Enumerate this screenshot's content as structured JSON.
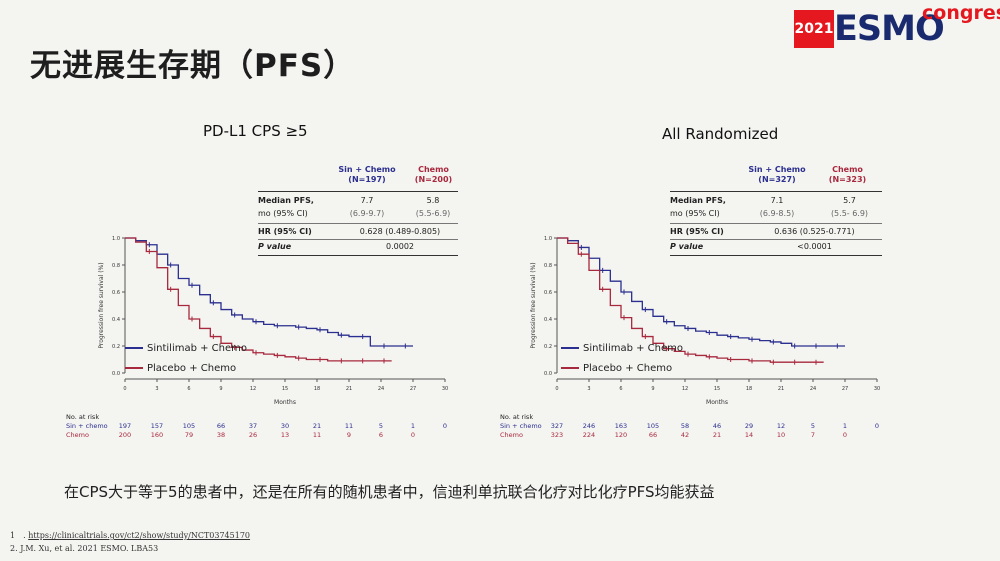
{
  "page": {
    "title": "无进展生存期（PFS）"
  },
  "logo": {
    "year": "2021",
    "brand": "ESMO",
    "suffix": "congress"
  },
  "caption": "在CPS大于等于5的患者中，还是在所有的随机患者中，信迪利单抗联合化疗对比化疗PFS均能获益",
  "references": [
    {
      "num": "1　.",
      "text": "https://clinicaltrials.gov/ct2/show/study/NCT03745170"
    },
    {
      "num": "2.",
      "text": "J.M. Xu, et al. 2021 ESMO. LBA53"
    }
  ],
  "colors": {
    "sin": "#2b2f8f",
    "chemo": "#a8293d",
    "neutral": "#888888"
  },
  "chart_data": [
    {
      "type": "line",
      "title": "PD-L1 CPS ≥5",
      "xlabel": "Months",
      "ylabel": "Progression free survival (%)",
      "xticks": [
        "0",
        "3",
        "6",
        "9",
        "12",
        "15",
        "18",
        "21",
        "24",
        "27",
        "30"
      ],
      "yticks": [
        "0.0",
        "0.2",
        "0.4",
        "0.6",
        "0.8",
        "1.0"
      ],
      "xlim": [
        0,
        30
      ],
      "ylim": [
        0,
        1
      ],
      "table": {
        "col1_head": [
          "Sin + Chemo",
          "(N=197)"
        ],
        "col2_head": [
          "Chemo",
          "(N=200)"
        ],
        "row1_label": [
          "Median PFS,",
          "mo (95% CI)"
        ],
        "row1_c1": [
          "7.7",
          "(6.9-9.7)"
        ],
        "row1_c2": [
          "5.8",
          "(5.5-6.9)"
        ],
        "row2_label": "HR (95% CI)",
        "row2_val": "0.628 (0.489-0.805)",
        "row3_label": "P value",
        "row3_val": "0.0002"
      },
      "series": [
        {
          "name": "Sintilimab + Chemo",
          "color": "#2b2f8f",
          "x": [
            0,
            1,
            2,
            3,
            4,
            5,
            6,
            7,
            8,
            9,
            10,
            11,
            12,
            13,
            14,
            15,
            16,
            17,
            18,
            19,
            20,
            21,
            22,
            23,
            24,
            25,
            26,
            27
          ],
          "y": [
            1.0,
            0.98,
            0.95,
            0.88,
            0.8,
            0.7,
            0.65,
            0.58,
            0.52,
            0.47,
            0.43,
            0.4,
            0.38,
            0.36,
            0.35,
            0.35,
            0.34,
            0.33,
            0.32,
            0.3,
            0.28,
            0.27,
            0.27,
            0.2,
            0.2,
            0.2,
            0.2,
            0.2
          ]
        },
        {
          "name": "Placebo + Chemo",
          "color": "#a8293d",
          "x": [
            0,
            1,
            2,
            3,
            4,
            5,
            6,
            7,
            8,
            9,
            10,
            11,
            12,
            13,
            14,
            15,
            16,
            17,
            18,
            19,
            20,
            21,
            22,
            23,
            24,
            25
          ],
          "y": [
            1.0,
            0.97,
            0.9,
            0.78,
            0.62,
            0.5,
            0.4,
            0.33,
            0.27,
            0.22,
            0.19,
            0.17,
            0.15,
            0.14,
            0.13,
            0.12,
            0.11,
            0.1,
            0.1,
            0.09,
            0.09,
            0.09,
            0.09,
            0.09,
            0.09,
            0.09
          ]
        }
      ],
      "at_risk": {
        "title": "No. at risk",
        "rows": [
          {
            "label": "Sin + chemo",
            "values": [
              "197",
              "157",
              "105",
              "66",
              "37",
              "30",
              "21",
              "11",
              "5",
              "1",
              "0"
            ]
          },
          {
            "label": "Chemo",
            "values": [
              "200",
              "160",
              "79",
              "38",
              "26",
              "13",
              "11",
              "9",
              "6",
              "0",
              ""
            ]
          }
        ]
      }
    },
    {
      "type": "line",
      "title": "All Randomized",
      "xlabel": "Months",
      "ylabel": "Progression free survival (%)",
      "xticks": [
        "0",
        "3",
        "6",
        "9",
        "12",
        "15",
        "18",
        "21",
        "24",
        "27",
        "30"
      ],
      "yticks": [
        "0.0",
        "0.2",
        "0.4",
        "0.6",
        "0.8",
        "1.0"
      ],
      "xlim": [
        0,
        30
      ],
      "ylim": [
        0,
        1
      ],
      "table": {
        "col1_head": [
          "Sin + Chemo",
          "(N=327)"
        ],
        "col2_head": [
          "Chemo",
          "(N=323)"
        ],
        "row1_label": [
          "Median PFS,",
          "mo (95% CI)"
        ],
        "row1_c1": [
          "7.1",
          "(6.9-8.5)"
        ],
        "row1_c2": [
          "5.7",
          "(5.5- 6.9)"
        ],
        "row2_label": "HR (95% CI)",
        "row2_val": "0.636 (0.525-0.771)",
        "row3_label": "P value",
        "row3_val": "<0.0001"
      },
      "series": [
        {
          "name": "Sintilimab + Chemo",
          "color": "#2b2f8f",
          "x": [
            0,
            1,
            2,
            3,
            4,
            5,
            6,
            7,
            8,
            9,
            10,
            11,
            12,
            13,
            14,
            15,
            16,
            17,
            18,
            19,
            20,
            21,
            22,
            23,
            24,
            25,
            26,
            27
          ],
          "y": [
            1.0,
            0.98,
            0.93,
            0.85,
            0.76,
            0.68,
            0.6,
            0.53,
            0.47,
            0.42,
            0.38,
            0.35,
            0.33,
            0.31,
            0.3,
            0.28,
            0.27,
            0.26,
            0.25,
            0.24,
            0.23,
            0.22,
            0.2,
            0.2,
            0.2,
            0.2,
            0.2,
            0.2
          ]
        },
        {
          "name": "Placebo + Chemo",
          "color": "#a8293d",
          "x": [
            0,
            1,
            2,
            3,
            4,
            5,
            6,
            7,
            8,
            9,
            10,
            11,
            12,
            13,
            14,
            15,
            16,
            17,
            18,
            19,
            20,
            21,
            22,
            23,
            24,
            25
          ],
          "y": [
            1.0,
            0.96,
            0.88,
            0.76,
            0.62,
            0.5,
            0.41,
            0.33,
            0.27,
            0.22,
            0.18,
            0.16,
            0.14,
            0.13,
            0.12,
            0.11,
            0.1,
            0.1,
            0.09,
            0.09,
            0.08,
            0.08,
            0.08,
            0.08,
            0.08,
            0.08
          ]
        }
      ],
      "at_risk": {
        "title": "No. at risk",
        "rows": [
          {
            "label": "Sin + chemo",
            "values": [
              "327",
              "246",
              "163",
              "105",
              "58",
              "46",
              "29",
              "12",
              "5",
              "1",
              "0"
            ]
          },
          {
            "label": "Chemo",
            "values": [
              "323",
              "224",
              "120",
              "66",
              "42",
              "21",
              "14",
              "10",
              "7",
              "0",
              ""
            ]
          }
        ]
      }
    }
  ]
}
